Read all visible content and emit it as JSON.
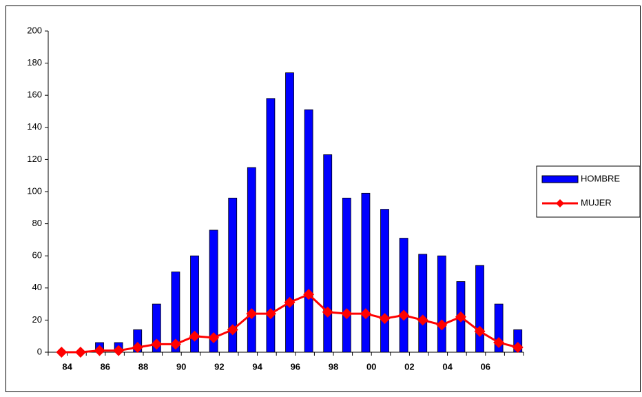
{
  "chart_data": {
    "type": "bar",
    "categories": [
      "84",
      null,
      "86",
      null,
      "88",
      null,
      "90",
      null,
      "92",
      null,
      "94",
      null,
      "96",
      null,
      "98",
      null,
      "00",
      null,
      "02",
      null,
      "04",
      null,
      "06",
      null,
      null
    ],
    "series": [
      {
        "name": "HOMBRE",
        "type": "bar",
        "color": "#0000ff",
        "values": [
          0,
          0,
          6,
          6,
          14,
          30,
          50,
          60,
          76,
          96,
          115,
          158,
          174,
          151,
          123,
          96,
          99,
          89,
          71,
          61,
          60,
          44,
          54,
          30,
          14
        ]
      },
      {
        "name": "MUJER",
        "type": "line",
        "color": "#ff0000",
        "values": [
          0,
          0,
          1,
          1,
          3,
          5,
          5,
          10,
          9,
          14,
          24,
          24,
          31,
          36,
          25,
          24,
          24,
          21,
          23,
          20,
          17,
          22,
          13,
          6,
          3
        ]
      }
    ],
    "ylim": [
      0,
      200
    ],
    "yticks": [
      0,
      20,
      40,
      60,
      80,
      100,
      120,
      140,
      160,
      180,
      200
    ],
    "legend": "right"
  }
}
